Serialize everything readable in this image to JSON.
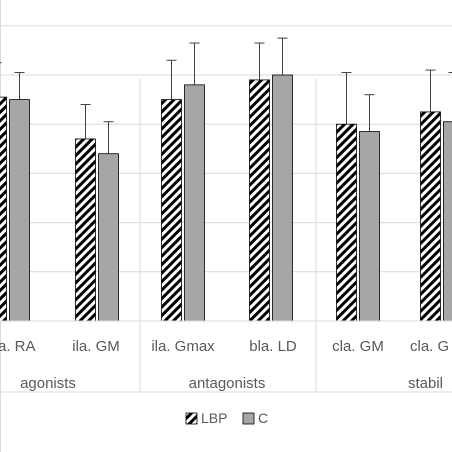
{
  "chart_data": {
    "type": "bar",
    "categories": [
      "cla. RA",
      "ila. GM",
      "ila. Gmax",
      "bla. LD",
      "cla. GM",
      "cla. GM"
    ],
    "category_labels": [
      "a. RA",
      "ila. GM",
      "ila. Gmax",
      "bla. LD",
      "cla. GM",
      "cla. G"
    ],
    "groups": [
      {
        "label": "agonists",
        "display": "agonists",
        "categories": [
          0,
          1
        ]
      },
      {
        "label": "antagonists",
        "display": "antagonists",
        "categories": [
          2,
          3
        ]
      },
      {
        "label": "stabilizers",
        "display": "stabil",
        "categories": [
          4,
          5
        ]
      }
    ],
    "series": [
      {
        "name": "LBP",
        "pattern": "diagonal-hatch",
        "values": [
          0.91,
          0.74,
          0.9,
          0.98,
          0.8,
          0.85
        ],
        "errors": [
          0.14,
          0.14,
          0.16,
          0.15,
          0.21,
          0.17
        ]
      },
      {
        "name": "C",
        "color": "#a6a6a6",
        "values": [
          0.9,
          0.68,
          0.96,
          1.0,
          0.77,
          0.81
        ],
        "errors": [
          0.11,
          0.13,
          0.17,
          0.15,
          0.15,
          0.2
        ]
      }
    ],
    "ylim": [
      0,
      1.3
    ],
    "yticks": [
      0,
      0.2,
      0.4,
      0.6,
      0.8,
      1.0,
      1.2
    ],
    "grid": true,
    "legend": {
      "position": "bottom",
      "entries": [
        "LBP",
        "C"
      ]
    },
    "colors": {
      "grid": "#d9d9d9",
      "bar_c": "#a6a6a6",
      "bar_outline": "#000000",
      "text": "#595959",
      "error_bar": "#404040"
    }
  }
}
